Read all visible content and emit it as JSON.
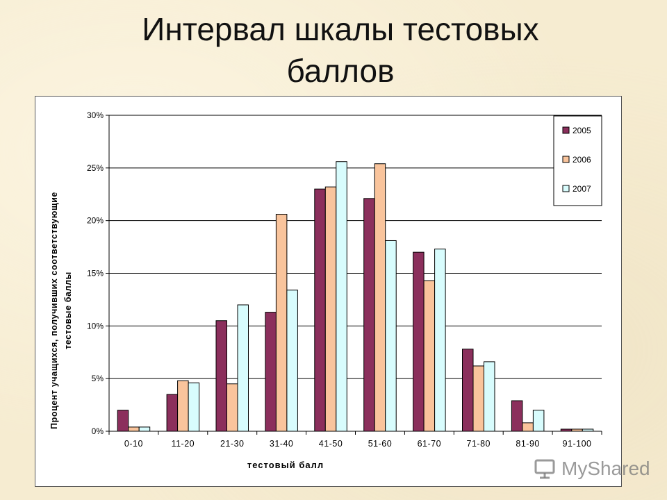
{
  "page": {
    "title_lines": [
      "Интервал шкалы тестовых",
      "баллов"
    ],
    "watermark": "MyShared"
  },
  "colors": {
    "s2005": "#8b2f5c",
    "s2006": "#f9c49c",
    "s2007": "#d8fcfd",
    "grid": "#000000",
    "bar_stroke": "#000000"
  },
  "chart_data": {
    "type": "bar",
    "categories": [
      "0-10",
      "11-20",
      "21-30",
      "31-40",
      "41-50",
      "51-60",
      "61-70",
      "71-80",
      "81-90",
      "91-100"
    ],
    "series": [
      {
        "name": "2005",
        "values": [
          2.0,
          3.5,
          10.5,
          11.3,
          23.0,
          22.1,
          17.0,
          7.8,
          2.9,
          0.2
        ]
      },
      {
        "name": "2006",
        "values": [
          0.4,
          4.8,
          4.5,
          20.6,
          23.2,
          25.4,
          14.3,
          6.2,
          0.8,
          0.2
        ]
      },
      {
        "name": "2007",
        "values": [
          0.4,
          4.6,
          12.0,
          13.4,
          25.6,
          18.1,
          17.3,
          6.6,
          2.0,
          0.2
        ]
      }
    ],
    "title": "",
    "xlabel": "тестовый балл",
    "ylabel_lines": [
      "Процент учащихся, получивших соответствующие",
      "тестовые баллы"
    ],
    "ylim": [
      0,
      30
    ],
    "yticks": [
      0,
      5,
      10,
      15,
      20,
      25,
      30
    ],
    "ytick_labels": [
      "0%",
      "5%",
      "10%",
      "15%",
      "20%",
      "25%",
      "30%"
    ],
    "grid": true,
    "legend": "top-right"
  }
}
